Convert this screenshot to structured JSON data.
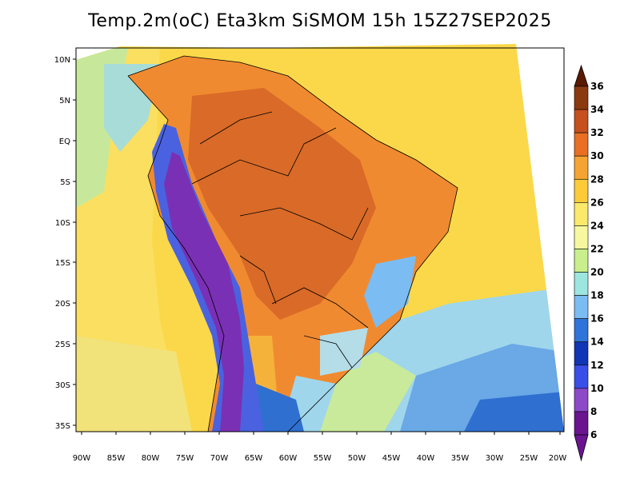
{
  "title": "Temp.2m(oC) Eta3km SiSMOM 15h 15Z27SEP2025",
  "latitude_labels": [
    "10N",
    "5N",
    "EQ",
    "5S",
    "10S",
    "15S",
    "20S",
    "25S",
    "30S",
    "35S"
  ],
  "longitude_labels": [
    "90W",
    "85W",
    "80W",
    "75W",
    "70W",
    "65W",
    "60W",
    "55W",
    "50W",
    "45W",
    "40W",
    "35W",
    "30W",
    "25W",
    "20W"
  ],
  "colorbar": {
    "labels": [
      "36",
      "34",
      "32",
      "30",
      "28",
      "26",
      "24",
      "22",
      "20",
      "18",
      "16",
      "14",
      "12",
      "10",
      "8",
      "6"
    ],
    "colors": [
      "#5a1a00",
      "#8b3a0e",
      "#c6501e",
      "#e86f23",
      "#f5a433",
      "#fccb3a",
      "#fae96a",
      "#f7f7a0",
      "#c8ef8c",
      "#9de6e0",
      "#7bbcf2",
      "#2f74d8",
      "#1035b5",
      "#3a4fe8",
      "#8c49c8",
      "#6a1490"
    ]
  },
  "field_colors": {
    "hot_core": "#d96a28",
    "warm": "#f08a30",
    "ocean_warm": "#f5c642",
    "ocean_mild": "#fbe265",
    "ocean_cool": "#c9ea9a",
    "south_cool": "#9fd6ec",
    "south_cold": "#3f86dc",
    "andes_cold": "#7a30b4",
    "andes_mid": "#4a62e0"
  }
}
